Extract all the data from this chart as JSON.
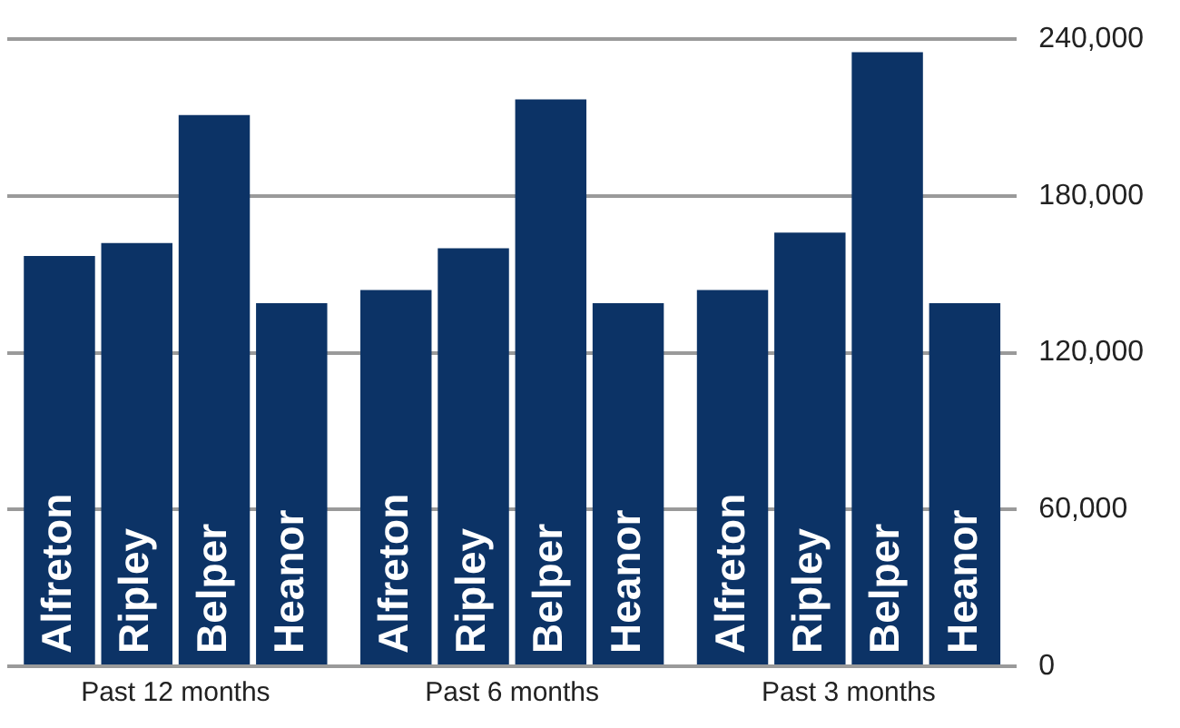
{
  "chart_data": {
    "type": "bar",
    "categories": [
      "Past 12 months",
      "Past 6 months",
      "Past 3 months"
    ],
    "series": [
      {
        "name": "Alfreton",
        "color": "#0c3366",
        "values": [
          157000,
          144000,
          144000
        ]
      },
      {
        "name": "Ripley",
        "color": "#0c3366",
        "values": [
          162000,
          160000,
          166000
        ]
      },
      {
        "name": "Belper",
        "color": "#0c3366",
        "values": [
          211000,
          217000,
          235000
        ]
      },
      {
        "name": "Heanor",
        "color": "#0c3366",
        "values": [
          139000,
          139000,
          139000
        ]
      }
    ],
    "ylim": [
      0,
      240000
    ],
    "yticks": [
      0,
      {
        "value": 60000,
        "label": "60,000"
      },
      {
        "value": 120000,
        "label": "120,000"
      },
      {
        "value": 180000,
        "label": "180,000"
      },
      {
        "value": 240000,
        "label": "240,000"
      }
    ],
    "grid": "y",
    "legend": false
  }
}
